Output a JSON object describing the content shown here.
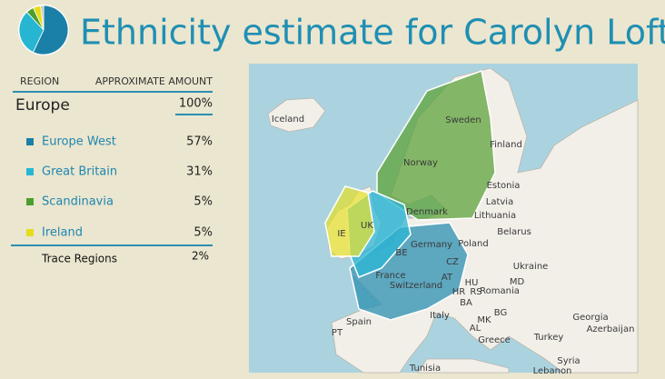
{
  "header": {
    "title": "Ethnicity estimate for Carolyn Loftin"
  },
  "table": {
    "region_header": "REGION",
    "amount_header": "APPROXIMATE AMOUNT",
    "total": {
      "name": "Europe",
      "amount": "100%"
    },
    "regions": [
      {
        "name": "Europe West",
        "amount": "57%",
        "color": "#1b80a8"
      },
      {
        "name": "Great Britain",
        "amount": "31%",
        "color": "#27b6d2"
      },
      {
        "name": "Scandinavia",
        "amount": "5%",
        "color": "#4c9f2f"
      },
      {
        "name": "Ireland",
        "amount": "5%",
        "color": "#e6dc1c"
      }
    ],
    "trace": {
      "name": "Trace Regions",
      "amount": "2%"
    }
  },
  "map": {
    "labels": [
      "Iceland",
      "Sweden",
      "Finland",
      "Norway",
      "Estonia",
      "Latvia",
      "Lithuania",
      "Denmark",
      "Belarus",
      "UK",
      "IE",
      "Germany",
      "Poland",
      "BE",
      "CZ",
      "Ukraine",
      "France",
      "AT",
      "Switzerland",
      "HU",
      "MD",
      "Romania",
      "HR",
      "RS",
      "BA",
      "BG",
      "MK",
      "Italy",
      "Spain",
      "PT",
      "AL",
      "Georgia",
      "Azerbaijan",
      "Greece",
      "Turkey",
      "Syria",
      "Tunisia",
      "Lebanon"
    ]
  }
}
